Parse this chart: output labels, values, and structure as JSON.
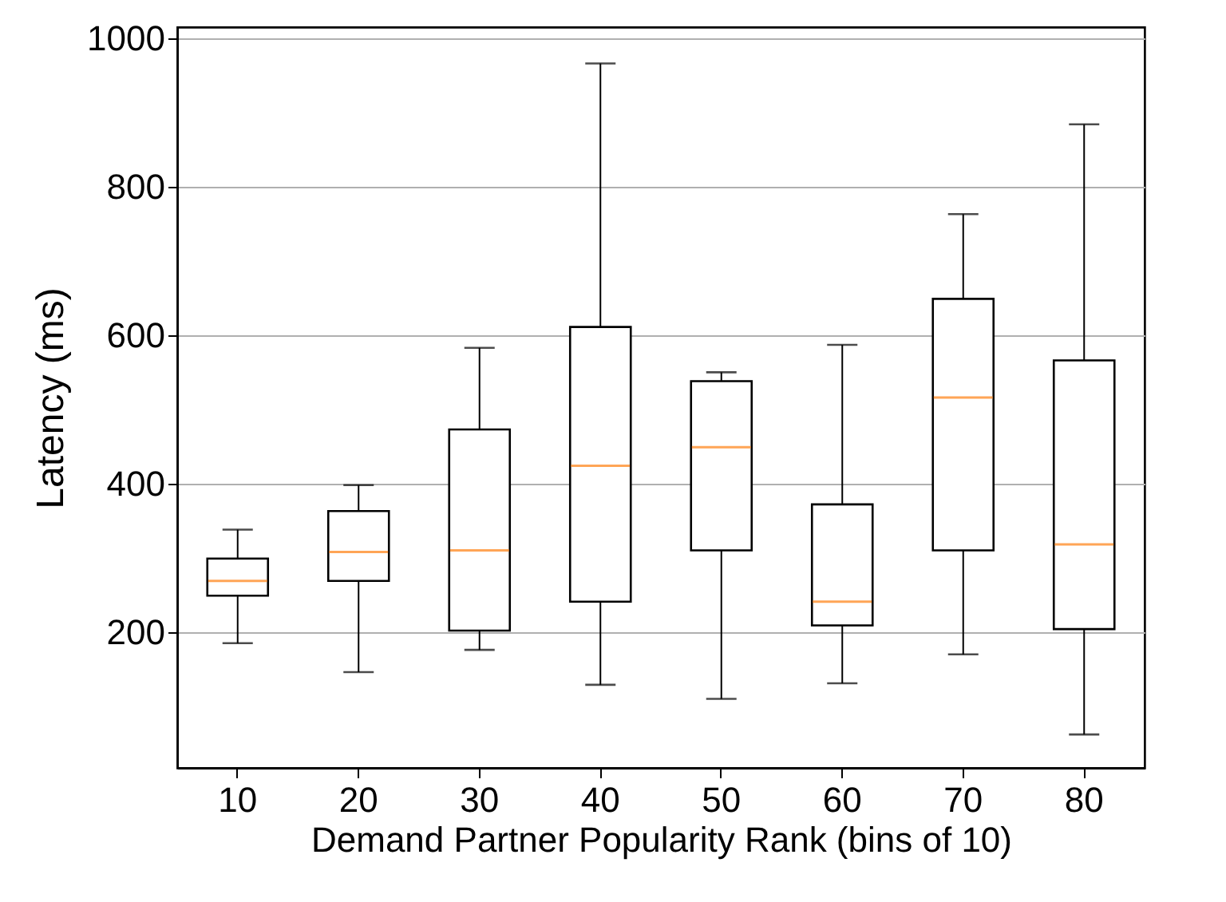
{
  "chart_data": {
    "type": "box",
    "xlabel": "Demand Partner Popularity Rank (bins of 10)",
    "ylabel": "Latency (ms)",
    "categories": [
      "10",
      "20",
      "30",
      "40",
      "50",
      "60",
      "70",
      "80"
    ],
    "boxes": [
      {
        "low": 185,
        "q1": 249,
        "median": 269,
        "q3": 299,
        "high": 338
      },
      {
        "low": 146,
        "q1": 269,
        "median": 308,
        "q3": 363,
        "high": 398
      },
      {
        "low": 176,
        "q1": 202,
        "median": 310,
        "q3": 473,
        "high": 583
      },
      {
        "low": 129,
        "q1": 241,
        "median": 424,
        "q3": 611,
        "high": 966
      },
      {
        "low": 110,
        "q1": 310,
        "median": 449,
        "q3": 538,
        "high": 550
      },
      {
        "low": 131,
        "q1": 209,
        "median": 241,
        "q3": 372,
        "high": 587
      },
      {
        "low": 170,
        "q1": 310,
        "median": 516,
        "q3": 649,
        "high": 763
      },
      {
        "low": 62,
        "q1": 204,
        "median": 318,
        "q3": 566,
        "high": 884
      }
    ],
    "ylim": [
      17,
      1015
    ],
    "yticks": [
      200,
      400,
      600,
      800,
      1000
    ],
    "grid": "y"
  }
}
